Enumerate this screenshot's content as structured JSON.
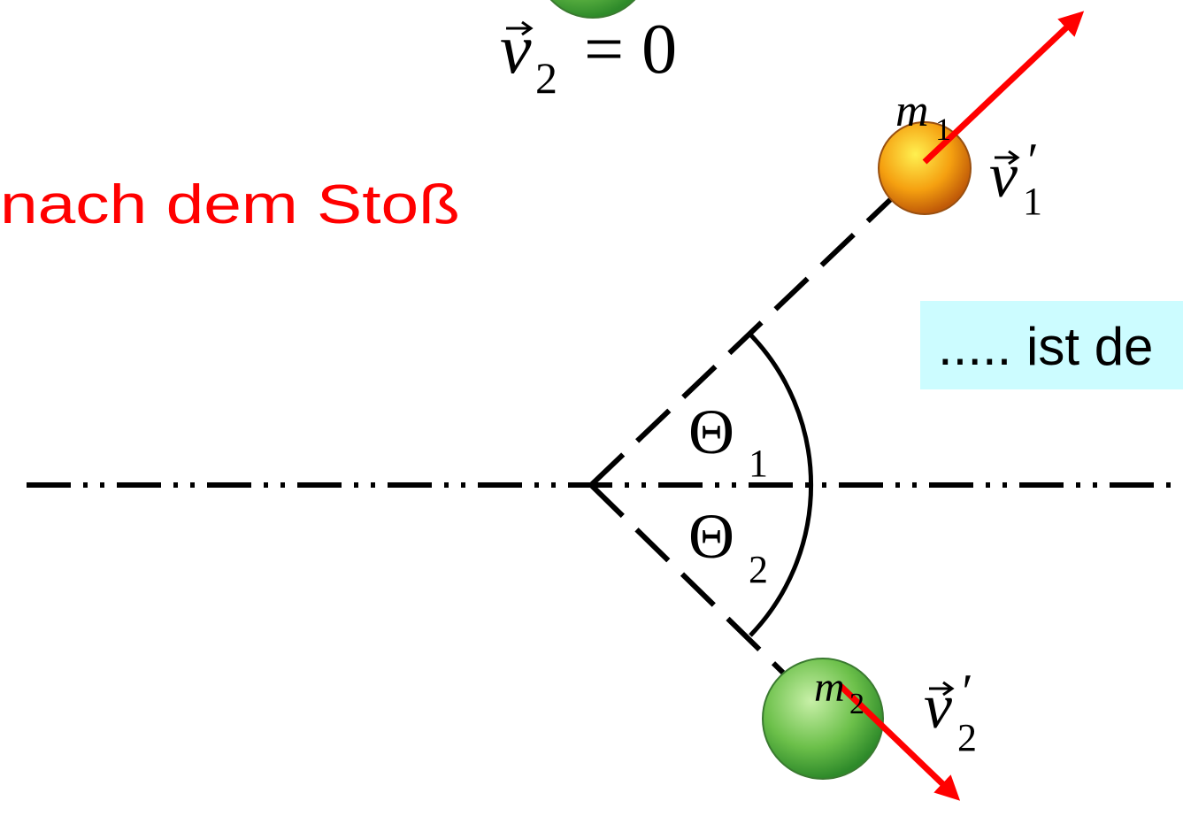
{
  "heading": "nach dem Stoß",
  "callout": "..... ist de",
  "v2_before": {
    "base": "v",
    "sub": "2",
    "rest": "= 0"
  },
  "m1": {
    "base": "m",
    "sub": "1"
  },
  "m2": {
    "base": "m",
    "sub": "2"
  },
  "theta1": {
    "base": "Θ",
    "sub": "1"
  },
  "theta2": {
    "base": "Θ",
    "sub": "2"
  },
  "v1_after": {
    "base": "v",
    "prime": "′",
    "sub": "1"
  },
  "v2_after": {
    "base": "v",
    "prime": "′",
    "sub": "2"
  }
}
